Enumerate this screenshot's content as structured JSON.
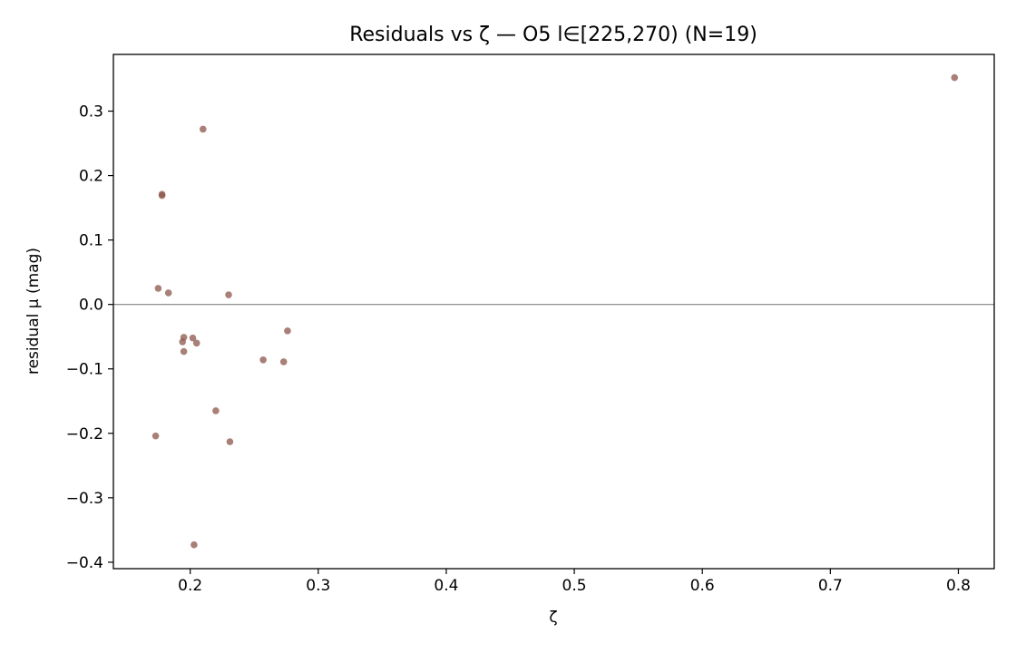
{
  "chart_data": {
    "type": "scatter",
    "title": "Residuals vs ζ — O5 l∈[225,270) (N=19)",
    "xlabel": "ζ",
    "ylabel": "residual μ (mag)",
    "xlim": [
      0.14,
      0.828
    ],
    "ylim": [
      -0.41,
      0.388
    ],
    "xticks": [
      0.2,
      0.3,
      0.4,
      0.5,
      0.6,
      0.7,
      0.8
    ],
    "xtick_labels": [
      "0.2",
      "0.3",
      "0.4",
      "0.5",
      "0.6",
      "0.7",
      "0.8"
    ],
    "yticks": [
      -0.4,
      -0.3,
      -0.2,
      -0.1,
      0.0,
      0.1,
      0.2,
      0.3
    ],
    "ytick_labels": [
      "−0.4",
      "−0.3",
      "−0.2",
      "−0.1",
      "0.0",
      "0.1",
      "0.2",
      "0.3"
    ],
    "reference_line": {
      "y": 0.0,
      "color": "#808080"
    },
    "grid": false,
    "legend": null,
    "point_color": "#8c564b",
    "points": [
      {
        "x": 0.173,
        "y": -0.204
      },
      {
        "x": 0.175,
        "y": 0.025
      },
      {
        "x": 0.178,
        "y": 0.171
      },
      {
        "x": 0.178,
        "y": 0.169
      },
      {
        "x": 0.183,
        "y": 0.018
      },
      {
        "x": 0.194,
        "y": -0.058
      },
      {
        "x": 0.195,
        "y": -0.051
      },
      {
        "x": 0.195,
        "y": -0.073
      },
      {
        "x": 0.202,
        "y": -0.052
      },
      {
        "x": 0.203,
        "y": -0.373
      },
      {
        "x": 0.205,
        "y": -0.06
      },
      {
        "x": 0.21,
        "y": 0.272
      },
      {
        "x": 0.22,
        "y": -0.165
      },
      {
        "x": 0.23,
        "y": 0.015
      },
      {
        "x": 0.231,
        "y": -0.213
      },
      {
        "x": 0.257,
        "y": -0.086
      },
      {
        "x": 0.273,
        "y": -0.089
      },
      {
        "x": 0.276,
        "y": -0.041
      },
      {
        "x": 0.797,
        "y": 0.352
      }
    ]
  }
}
